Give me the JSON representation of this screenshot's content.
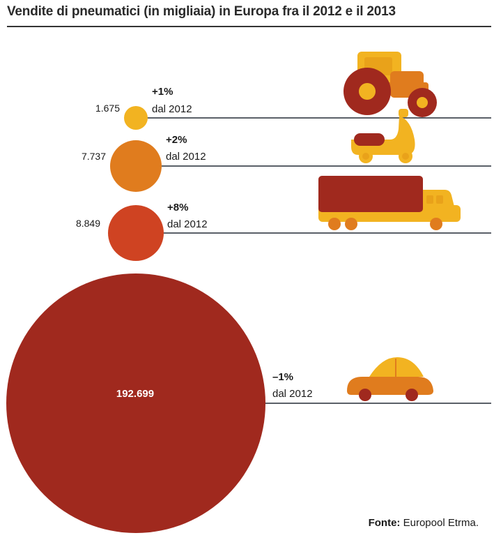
{
  "title": "Vendite di pneumatici (in migliaia) in Europa fra il 2012 e il 2013",
  "source": {
    "label": "Fonte:",
    "value": "Europool Etrma."
  },
  "chart_data": {
    "type": "bubble",
    "title": "Vendite di pneumatici (in migliaia) in Europa fra il 2012 e il 2013",
    "categories": [
      "tractor-icon",
      "scooter-icon",
      "truck-icon",
      "car-icon"
    ],
    "values": [
      1675,
      7737,
      8849,
      192699
    ],
    "value_labels": [
      "1.675",
      "7.737",
      "8.849",
      "192.699"
    ],
    "changes": [
      "+1%",
      "+2%",
      "+8%",
      "–1%"
    ],
    "change_note": "dal 2012",
    "colors": [
      "#f2b321",
      "#e07c1e",
      "#cf4322",
      "#a0291e"
    ]
  }
}
